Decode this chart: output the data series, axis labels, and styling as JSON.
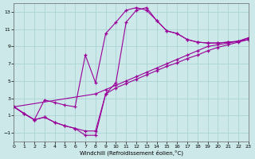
{
  "xlabel": "Windchill (Refroidissement éolien,°C)",
  "bg_color": "#cce8e8",
  "grid_color": "#aad4d4",
  "line_color": "#990099",
  "xlim": [
    0,
    23
  ],
  "ylim": [
    -2,
    14
  ],
  "xticks": [
    0,
    1,
    2,
    3,
    4,
    5,
    6,
    7,
    8,
    9,
    10,
    11,
    12,
    13,
    14,
    15,
    16,
    17,
    18,
    19,
    20,
    21,
    22,
    23
  ],
  "yticks": [
    -1,
    1,
    3,
    5,
    7,
    9,
    11,
    13
  ],
  "curve_main_x": [
    0,
    1,
    2,
    3,
    4,
    5,
    6,
    7,
    8,
    9,
    10,
    11,
    12,
    13,
    14,
    15,
    16,
    17,
    18,
    19,
    20,
    21,
    22,
    23
  ],
  "curve_main_y": [
    2.0,
    1.2,
    0.5,
    2.8,
    2.5,
    2.2,
    2.0,
    8.0,
    4.8,
    10.5,
    11.8,
    13.2,
    13.5,
    13.2,
    12.0,
    10.8,
    10.5,
    9.8,
    9.5,
    9.4,
    9.4,
    9.5,
    9.6,
    10.0
  ],
  "curve_low_x": [
    0,
    1,
    2,
    3,
    4,
    5,
    6,
    7,
    8,
    9,
    10,
    11,
    12,
    13,
    14,
    15,
    16,
    17,
    18,
    19,
    20,
    21,
    22,
    23
  ],
  "curve_low_y": [
    2.0,
    1.2,
    0.5,
    0.8,
    0.2,
    -0.2,
    -0.5,
    -0.8,
    -0.8,
    3.5,
    4.8,
    11.8,
    13.2,
    13.5,
    12.0,
    10.8,
    10.5,
    9.8,
    9.5,
    9.4,
    9.4,
    9.5,
    9.6,
    10.0
  ],
  "diag1_x": [
    0,
    8,
    9,
    10,
    11,
    12,
    13,
    14,
    15,
    16,
    17,
    18,
    19,
    20,
    21,
    22,
    23
  ],
  "diag1_y": [
    2.0,
    3.5,
    4.0,
    4.5,
    5.0,
    5.5,
    6.0,
    6.5,
    7.0,
    7.5,
    8.0,
    8.5,
    9.0,
    9.2,
    9.4,
    9.6,
    9.8
  ],
  "diag2_x": [
    0,
    2,
    3,
    4,
    5,
    6,
    7,
    8,
    9,
    10,
    11,
    12,
    13,
    14,
    15,
    16,
    17,
    18,
    19,
    20,
    21,
    22,
    23
  ],
  "diag2_y": [
    2.0,
    0.5,
    0.8,
    0.2,
    -0.2,
    -0.5,
    -1.3,
    -1.3,
    3.5,
    4.2,
    4.7,
    5.2,
    5.7,
    6.2,
    6.7,
    7.1,
    7.6,
    8.0,
    8.5,
    8.9,
    9.2,
    9.5,
    9.8
  ]
}
